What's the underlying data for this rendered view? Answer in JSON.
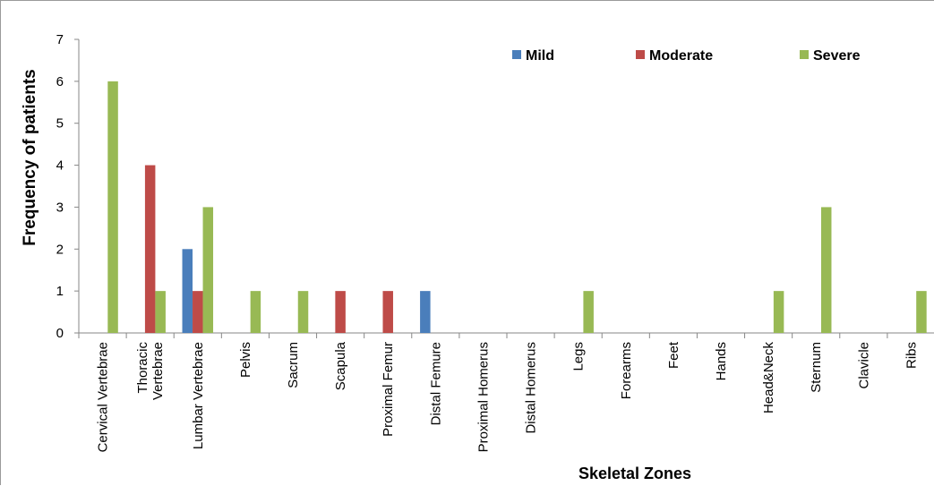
{
  "chart_data": {
    "type": "bar",
    "title": "",
    "xlabel": "Skeletal Zones",
    "ylabel": "Frequency of patients",
    "ylim": [
      0,
      7
    ],
    "yticks": [
      0,
      1,
      2,
      3,
      4,
      5,
      6,
      7
    ],
    "grid": false,
    "legend_position": "top-right",
    "categories": [
      [
        "Cervical Vertebrae"
      ],
      [
        "Thoracic",
        "Vertebrae"
      ],
      [
        "Lumbar Vertebrae"
      ],
      [
        "Pelvis"
      ],
      [
        "Sacrum"
      ],
      [
        "Scapula"
      ],
      [
        "Proximal Femur"
      ],
      [
        "Distal Femure"
      ],
      [
        "Proximal Homerus"
      ],
      [
        "Distal Homerus"
      ],
      [
        "Legs"
      ],
      [
        "Forearms"
      ],
      [
        "Feet"
      ],
      [
        "Hands"
      ],
      [
        "Head&Neck"
      ],
      [
        "Sternum"
      ],
      [
        "Clavicle"
      ],
      [
        "Ribs"
      ]
    ],
    "series": [
      {
        "name": "Mild",
        "color": "#4a7ebb",
        "values": [
          0,
          0,
          2,
          0,
          0,
          0,
          0,
          1,
          0,
          0,
          0,
          0,
          0,
          0,
          0,
          0,
          0,
          0
        ]
      },
      {
        "name": "Moderate",
        "color": "#be4b48",
        "values": [
          0,
          4,
          1,
          0,
          0,
          1,
          1,
          0,
          0,
          0,
          0,
          0,
          0,
          0,
          0,
          0,
          0,
          0
        ]
      },
      {
        "name": "Severe",
        "color": "#98b954",
        "values": [
          6,
          1,
          3,
          1,
          1,
          0,
          0,
          0,
          0,
          0,
          1,
          0,
          0,
          0,
          1,
          3,
          0,
          1
        ]
      }
    ]
  }
}
